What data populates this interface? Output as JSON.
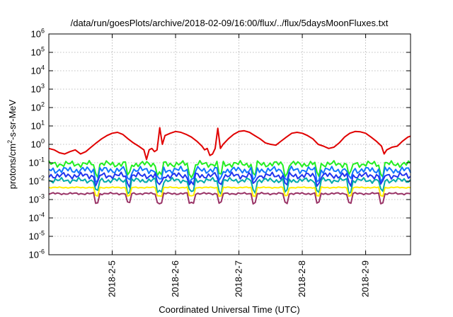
{
  "chart_data": {
    "type": "line",
    "title": "/data/run/goesPlots/archive/2018-02-09/16:00/flux/../flux/5daysMoonFluxes.txt",
    "xlabel": "Coordinated Universal Time (UTC)",
    "ylabel": {
      "pre": "protons/cm",
      "sup": "2",
      "post": "-s-sr-MeV"
    },
    "y_scale": "log",
    "ylim": [
      1e-06,
      1000000.0
    ],
    "y_ticks": [
      {
        "base": "10",
        "exp": "-6",
        "value": 1e-06
      },
      {
        "base": "10",
        "exp": "-5",
        "value": 1e-05
      },
      {
        "base": "10",
        "exp": "-4",
        "value": 0.0001
      },
      {
        "base": "10",
        "exp": "-3",
        "value": 0.001
      },
      {
        "base": "10",
        "exp": "-2",
        "value": 0.01
      },
      {
        "base": "10",
        "exp": "-1",
        "value": 0.1
      },
      {
        "base": "10",
        "exp": "0",
        "value": 1
      },
      {
        "base": "10",
        "exp": "1",
        "value": 10
      },
      {
        "base": "10",
        "exp": "2",
        "value": 100
      },
      {
        "base": "10",
        "exp": "3",
        "value": 1000
      },
      {
        "base": "10",
        "exp": "4",
        "value": 10000
      },
      {
        "base": "10",
        "exp": "5",
        "value": 100000
      },
      {
        "base": "10",
        "exp": "6",
        "value": 1000000
      }
    ],
    "xlim": [
      "2018-02-04T00:00",
      "2018-02-09T17:00"
    ],
    "x_ticks": [
      {
        "label": "2018-2-5",
        "time": "2018-02-05T00:00"
      },
      {
        "label": "2018-2-6",
        "time": "2018-02-06T00:00"
      },
      {
        "label": "2018-2-7",
        "time": "2018-02-07T00:00"
      },
      {
        "label": "2018-2-8",
        "time": "2018-02-08T00:00"
      },
      {
        "label": "2018-2-9",
        "time": "2018-02-09T00:00"
      }
    ],
    "grid": true,
    "series": [
      {
        "color": "#e00000",
        "points": [
          [
            "2018-02-04T00:00",
            0.6
          ],
          [
            "2018-02-04T02:00",
            0.5
          ],
          [
            "2018-02-04T04:00",
            0.35
          ],
          [
            "2018-02-04T06:00",
            0.3
          ],
          [
            "2018-02-04T08:00",
            0.4
          ],
          [
            "2018-02-04T10:00",
            0.5
          ],
          [
            "2018-02-04T12:00",
            0.3
          ],
          [
            "2018-02-04T14:00",
            0.4
          ],
          [
            "2018-02-04T16:00",
            0.7
          ],
          [
            "2018-02-04T18:00",
            1.2
          ],
          [
            "2018-02-04T20:00",
            2.0
          ],
          [
            "2018-02-04T22:00",
            3.0
          ],
          [
            "2018-02-05T00:00",
            4.0
          ],
          [
            "2018-02-05T02:00",
            4.5
          ],
          [
            "2018-02-05T04:00",
            3.5
          ],
          [
            "2018-02-05T06:00",
            2.0
          ],
          [
            "2018-02-05T08:00",
            1.2
          ],
          [
            "2018-02-05T10:00",
            0.8
          ],
          [
            "2018-02-05T12:00",
            0.5
          ],
          [
            "2018-02-05T13:00",
            0.15
          ],
          [
            "2018-02-05T14:00",
            0.5
          ],
          [
            "2018-02-05T15:00",
            0.6
          ],
          [
            "2018-02-05T16:00",
            0.4
          ],
          [
            "2018-02-05T17:00",
            0.5
          ],
          [
            "2018-02-05T18:00",
            8.0
          ],
          [
            "2018-02-05T19:00",
            1.0
          ],
          [
            "2018-02-05T20:00",
            3.0
          ],
          [
            "2018-02-05T22:00",
            4.0
          ],
          [
            "2018-02-06T00:00",
            5.0
          ],
          [
            "2018-02-06T02:00",
            4.5
          ],
          [
            "2018-02-06T04:00",
            3.5
          ],
          [
            "2018-02-06T06:00",
            2.5
          ],
          [
            "2018-02-06T08:00",
            1.5
          ],
          [
            "2018-02-06T10:00",
            0.8
          ],
          [
            "2018-02-06T11:00",
            0.5
          ],
          [
            "2018-02-06T12:00",
            0.6
          ],
          [
            "2018-02-06T13:00",
            0.25
          ],
          [
            "2018-02-06T14:00",
            0.3
          ],
          [
            "2018-02-06T15:00",
            0.6
          ],
          [
            "2018-02-06T16:00",
            7.5
          ],
          [
            "2018-02-06T17:00",
            0.6
          ],
          [
            "2018-02-06T18:00",
            1.0
          ],
          [
            "2018-02-06T20:00",
            2.0
          ],
          [
            "2018-02-06T22:00",
            3.5
          ],
          [
            "2018-02-07T00:00",
            5.0
          ],
          [
            "2018-02-07T02:00",
            5.5
          ],
          [
            "2018-02-07T04:00",
            4.5
          ],
          [
            "2018-02-07T06:00",
            3.0
          ],
          [
            "2018-02-07T08:00",
            2.0
          ],
          [
            "2018-02-07T10:00",
            1.2
          ],
          [
            "2018-02-07T12:00",
            1.0
          ],
          [
            "2018-02-07T14:00",
            0.9
          ],
          [
            "2018-02-07T16:00",
            1.5
          ],
          [
            "2018-02-07T18:00",
            2.5
          ],
          [
            "2018-02-07T20:00",
            4.0
          ],
          [
            "2018-02-07T22:00",
            4.5
          ],
          [
            "2018-02-08T00:00",
            4.0
          ],
          [
            "2018-02-08T02:00",
            3.0
          ],
          [
            "2018-02-08T04:00",
            2.0
          ],
          [
            "2018-02-08T06:00",
            1.0
          ],
          [
            "2018-02-08T08:00",
            0.8
          ],
          [
            "2018-02-08T10:00",
            0.6
          ],
          [
            "2018-02-08T12:00",
            0.7
          ],
          [
            "2018-02-08T14:00",
            1.2
          ],
          [
            "2018-02-08T16:00",
            2.5
          ],
          [
            "2018-02-08T18:00",
            4.0
          ],
          [
            "2018-02-08T20:00",
            5.0
          ],
          [
            "2018-02-08T22:00",
            4.8
          ],
          [
            "2018-02-09T00:00",
            4.0
          ],
          [
            "2018-02-09T02:00",
            2.5
          ],
          [
            "2018-02-09T04:00",
            1.5
          ],
          [
            "2018-02-09T06:00",
            0.8
          ],
          [
            "2018-02-09T07:00",
            0.3
          ],
          [
            "2018-02-09T08:00",
            0.5
          ],
          [
            "2018-02-09T10:00",
            0.7
          ],
          [
            "2018-02-09T12:00",
            0.8
          ],
          [
            "2018-02-09T14:00",
            1.5
          ],
          [
            "2018-02-09T16:00",
            2.5
          ],
          [
            "2018-02-09T17:00",
            2.8
          ]
        ]
      },
      {
        "color": "#22ee22",
        "level": 0.085,
        "spread": 0.55,
        "dip": 0.55
      },
      {
        "color": "#1177ff",
        "level": 0.04,
        "spread": 0.6,
        "dip": 0.5
      },
      {
        "color": "#2233ee",
        "level": 0.02,
        "spread": 0.55,
        "dip": 0.45
      },
      {
        "color": "#00aaaa",
        "level": 0.011,
        "spread": 0.45,
        "dip": 0.6
      },
      {
        "color": "#ffee00",
        "level": 0.0045,
        "spread": 0.1,
        "dip": 0.45
      },
      {
        "color": "#993366",
        "level": 0.0021,
        "spread": 0.18,
        "dip": 0.5
      }
    ],
    "dip_times": [
      "2018-02-04T18:00",
      "2018-02-05T06:00",
      "2018-02-05T18:00",
      "2018-02-06T06:00",
      "2018-02-06T17:00",
      "2018-02-07T06:00",
      "2018-02-07T18:00",
      "2018-02-08T06:00",
      "2018-02-08T18:00",
      "2018-02-09T06:00"
    ]
  }
}
